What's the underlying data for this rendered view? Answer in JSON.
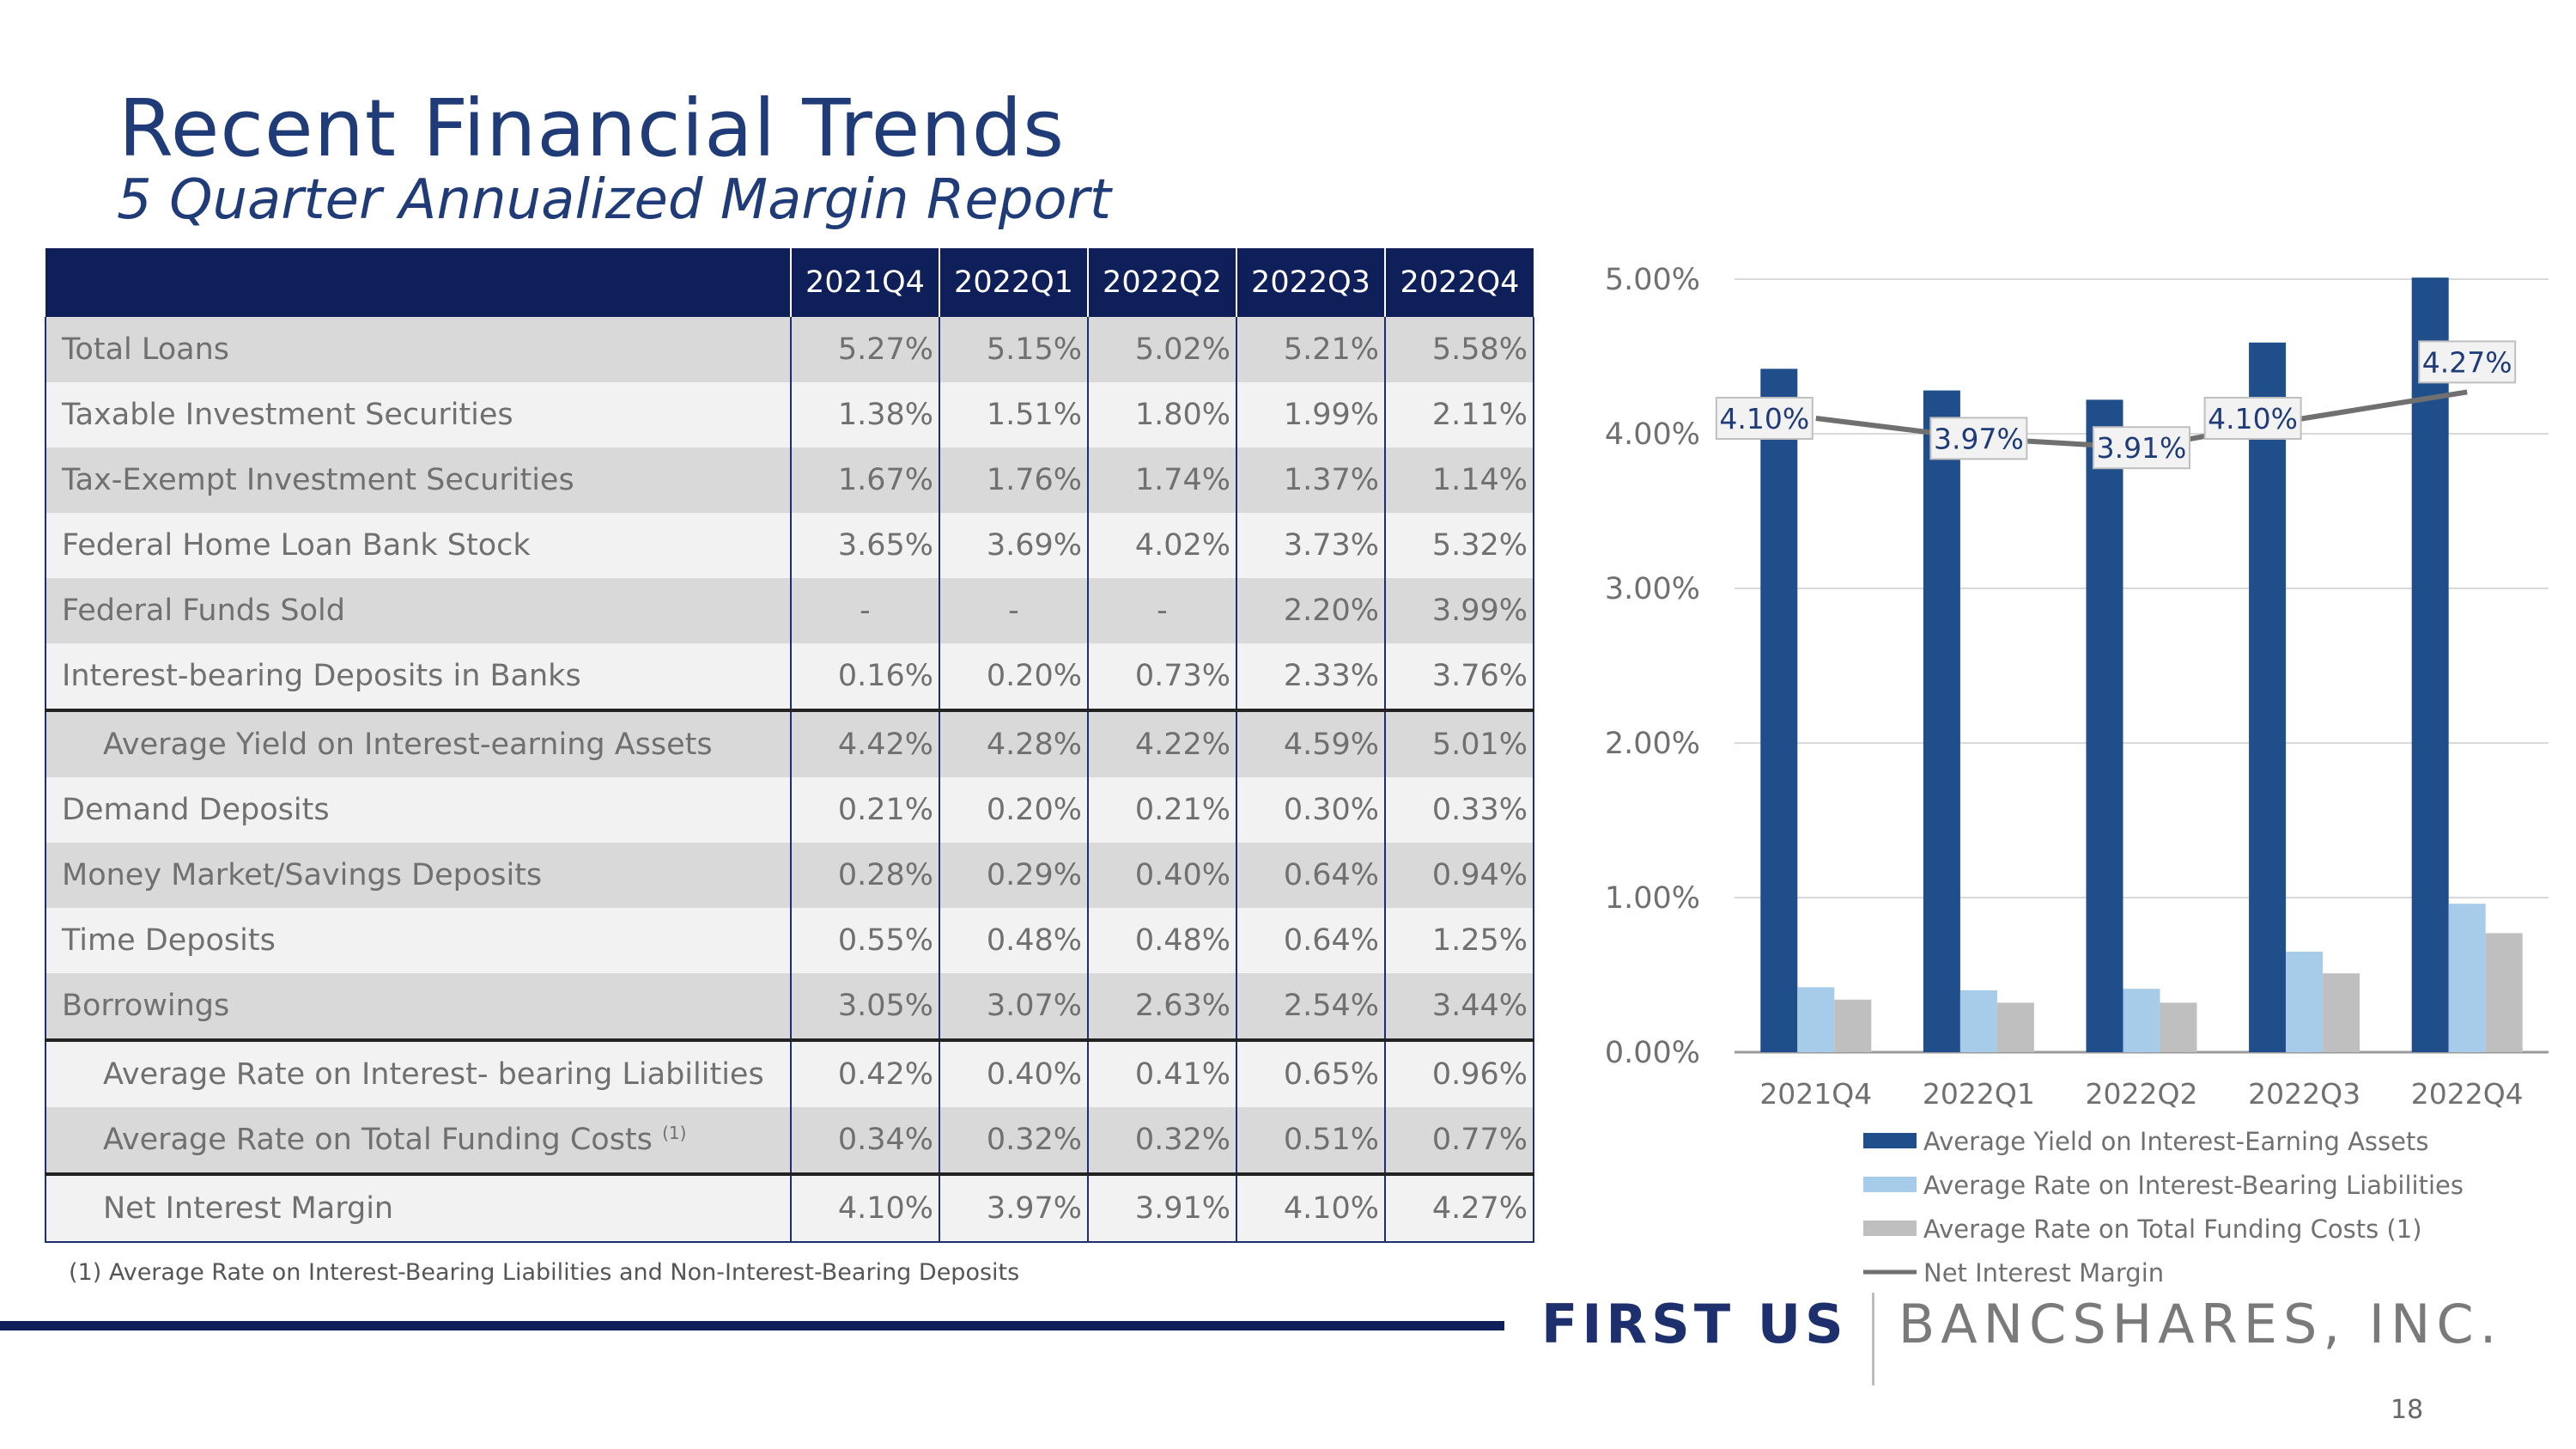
{
  "title": "Recent Financial Trends",
  "subtitle": "5 Quarter Annualized Margin Report",
  "table": {
    "columns": [
      "2021Q4",
      "2022Q1",
      "2022Q2",
      "2022Q3",
      "2022Q4"
    ],
    "rows": [
      {
        "label": "Total Loans",
        "values": [
          "5.27%",
          "5.15%",
          "5.02%",
          "5.21%",
          "5.58%"
        ]
      },
      {
        "label": "Taxable Investment Securities",
        "values": [
          "1.38%",
          "1.51%",
          "1.80%",
          "1.99%",
          "2.11%"
        ]
      },
      {
        "label": "Tax-Exempt Investment Securities",
        "values": [
          "1.67%",
          "1.76%",
          "1.74%",
          "1.37%",
          "1.14%"
        ]
      },
      {
        "label": "Federal Home Loan Bank Stock",
        "values": [
          "3.65%",
          "3.69%",
          "4.02%",
          "3.73%",
          "5.32%"
        ]
      },
      {
        "label": "Federal Funds Sold",
        "values": [
          "-",
          "-",
          "-",
          "2.20%",
          "3.99%"
        ]
      },
      {
        "label": "Interest-bearing Deposits in Banks",
        "values": [
          "0.16%",
          "0.20%",
          "0.73%",
          "2.33%",
          "3.76%"
        ]
      },
      {
        "label": "Average Yield on Interest-earning Assets",
        "values": [
          "4.42%",
          "4.28%",
          "4.22%",
          "4.59%",
          "5.01%"
        ]
      },
      {
        "label": "Demand Deposits",
        "values": [
          "0.21%",
          "0.20%",
          "0.21%",
          "0.30%",
          "0.33%"
        ]
      },
      {
        "label": "Money Market/Savings Deposits",
        "values": [
          "0.28%",
          "0.29%",
          "0.40%",
          "0.64%",
          "0.94%"
        ]
      },
      {
        "label": "Time Deposits",
        "values": [
          "0.55%",
          "0.48%",
          "0.48%",
          "0.64%",
          "1.25%"
        ]
      },
      {
        "label": "Borrowings",
        "values": [
          "3.05%",
          "3.07%",
          "2.63%",
          "2.54%",
          "3.44%"
        ]
      },
      {
        "label": "Average Rate on Interest- bearing Liabilities",
        "values": [
          "0.42%",
          "0.40%",
          "0.41%",
          "0.65%",
          "0.96%"
        ]
      },
      {
        "label": "Average Rate on Total Funding Costs",
        "footnote_mark": "(1)",
        "values": [
          "0.34%",
          "0.32%",
          "0.32%",
          "0.51%",
          "0.77%"
        ]
      },
      {
        "label": "Net Interest Margin",
        "values": [
          "4.10%",
          "3.97%",
          "3.91%",
          "4.10%",
          "4.27%"
        ]
      }
    ]
  },
  "footnote": "(1) Average Rate on Interest-Bearing Liabilities and Non-Interest-Bearing Deposits",
  "logo": {
    "part1": "FIRST US",
    "part2": "BANCSHARES, INC."
  },
  "page_number": "18",
  "colors": {
    "navy": "#1f4e8a",
    "light_blue": "#a6cce9",
    "gray_bar": "#bfbfbf",
    "line": "#707070",
    "header": "#0e1f5a"
  },
  "chart_data": {
    "type": "bar",
    "categories": [
      "2021Q4",
      "2022Q1",
      "2022Q2",
      "2022Q3",
      "2022Q4"
    ],
    "ylim": [
      0,
      5
    ],
    "yticks": [
      "0.00%",
      "1.00%",
      "2.00%",
      "3.00%",
      "4.00%",
      "5.00%"
    ],
    "series": [
      {
        "name": "Average Yield on Interest-Earning Assets",
        "type": "bar",
        "values": [
          4.42,
          4.28,
          4.22,
          4.59,
          5.01
        ]
      },
      {
        "name": "Average Rate on Interest-Bearing Liabilities",
        "type": "bar",
        "values": [
          0.42,
          0.4,
          0.41,
          0.65,
          0.96
        ]
      },
      {
        "name": "Average Rate on Total Funding Costs (1)",
        "type": "bar",
        "values": [
          0.34,
          0.32,
          0.32,
          0.51,
          0.77
        ]
      },
      {
        "name": "Net Interest Margin",
        "type": "line",
        "values": [
          4.1,
          3.97,
          3.91,
          4.1,
          4.27
        ],
        "labels": [
          "4.10%",
          "3.97%",
          "3.91%",
          "4.10%",
          "4.27%"
        ]
      }
    ],
    "legend_position": "bottom"
  }
}
